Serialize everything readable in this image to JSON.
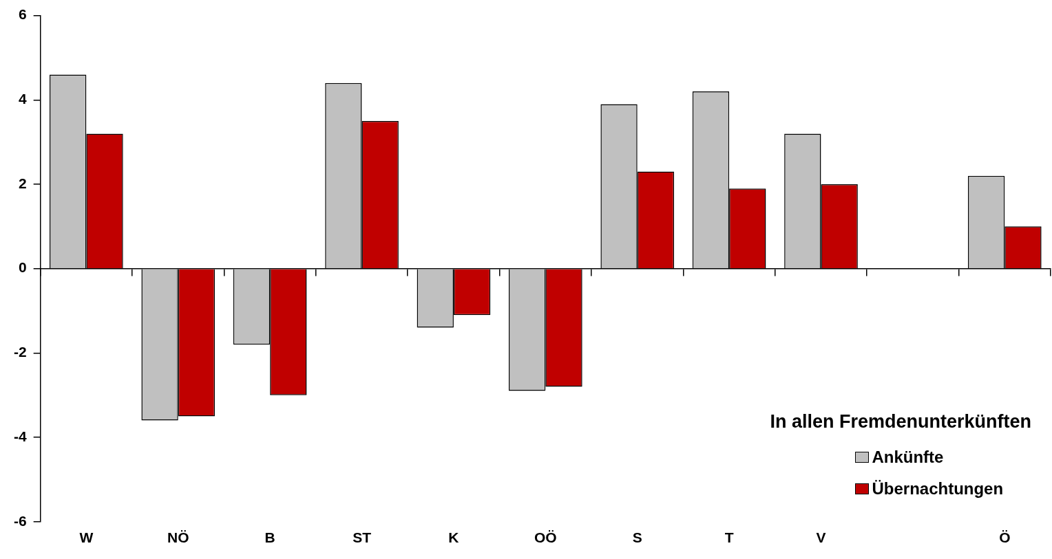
{
  "chart_data": {
    "type": "bar",
    "categories": [
      "W",
      "NÖ",
      "B",
      "ST",
      "K",
      "OÖ",
      "S",
      "T",
      "V",
      null,
      "Ö"
    ],
    "series": [
      {
        "name": "Ankünfte",
        "color": "#c0c0c0",
        "values": [
          4.6,
          -3.6,
          -1.8,
          4.4,
          -1.4,
          -2.9,
          3.9,
          4.2,
          3.2,
          null,
          2.2
        ]
      },
      {
        "name": "Übernachtungen",
        "color": "#c00000",
        "values": [
          3.2,
          -3.5,
          -3.0,
          3.5,
          -1.1,
          -2.8,
          2.3,
          1.9,
          2.0,
          null,
          1.0
        ]
      }
    ],
    "ylim": [
      -6,
      6
    ],
    "yticks": [
      -6,
      -4,
      -2,
      0,
      2,
      4,
      6
    ],
    "legend_title": "In allen Fremdenunterkünften",
    "legend": "bottom right"
  }
}
